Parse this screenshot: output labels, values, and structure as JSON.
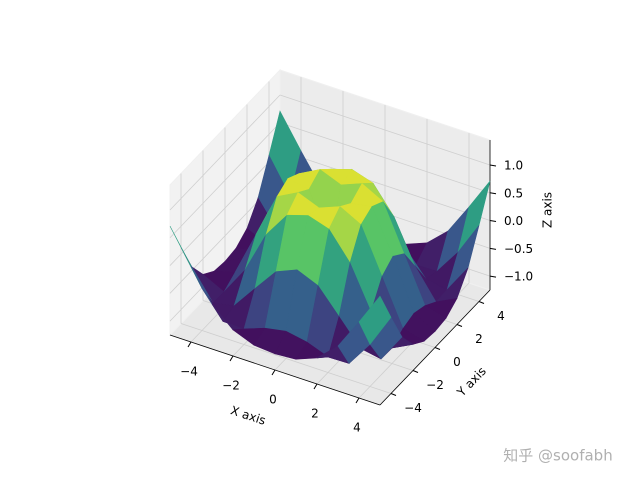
{
  "chart_data": {
    "type": "surface3d",
    "x": [
      -5,
      -4,
      -3,
      -2,
      -1,
      0,
      1,
      2,
      3,
      4,
      5
    ],
    "y": [
      -5,
      -4,
      -3,
      -2,
      -1,
      0,
      1,
      2,
      3,
      4,
      5
    ],
    "z": [
      [
        0.71,
        0.12,
        -0.44,
        -0.78,
        -0.93,
        -0.96,
        -0.93,
        -0.78,
        -0.44,
        0.12,
        0.71
      ],
      [
        0.12,
        -0.49,
        -0.96,
        -0.97,
        -0.83,
        -0.76,
        -0.83,
        -0.97,
        -0.96,
        -0.49,
        0.12
      ],
      [
        -0.44,
        -0.96,
        -0.89,
        -0.45,
        -0.02,
        0.14,
        -0.02,
        -0.45,
        -0.89,
        -0.96,
        -0.44
      ],
      [
        -0.78,
        -0.97,
        -0.45,
        0.31,
        0.79,
        0.91,
        0.79,
        0.31,
        -0.45,
        -0.97,
        -0.78
      ],
      [
        -0.93,
        -0.83,
        -0.02,
        0.79,
        0.99,
        0.84,
        0.99,
        0.79,
        -0.02,
        -0.83,
        -0.93
      ],
      [
        -0.96,
        -0.76,
        0.14,
        0.91,
        0.84,
        0,
        0.84,
        0.91,
        0.14,
        -0.76,
        -0.96
      ],
      [
        -0.93,
        -0.83,
        -0.02,
        0.79,
        0.99,
        0.84,
        0.99,
        0.79,
        -0.02,
        -0.83,
        -0.93
      ],
      [
        -0.78,
        -0.97,
        -0.45,
        0.31,
        0.79,
        0.91,
        0.79,
        0.31,
        -0.45,
        -0.97,
        -0.78
      ],
      [
        -0.44,
        -0.96,
        -0.89,
        -0.45,
        -0.02,
        0.14,
        -0.02,
        -0.45,
        -0.89,
        -0.96,
        -0.44
      ],
      [
        0.12,
        -0.49,
        -0.96,
        -0.97,
        -0.83,
        -0.76,
        -0.83,
        -0.97,
        -0.96,
        -0.49,
        0.12
      ],
      [
        0.71,
        0.12,
        -0.44,
        -0.78,
        -0.93,
        -0.96,
        -0.93,
        -0.78,
        -0.44,
        0.12,
        0.71
      ]
    ],
    "colormap": "viridis",
    "xlabel": "X axis",
    "ylabel": "Y axis",
    "zlabel": "Z axis",
    "xlim": [
      -5,
      5
    ],
    "ylim": [
      -5,
      5
    ],
    "zlim": [
      -1.25,
      1.45
    ],
    "xticks": [
      {
        "value": -4,
        "label": "−4"
      },
      {
        "value": -2,
        "label": "−2"
      },
      0,
      2,
      4
    ],
    "yticks": [
      {
        "value": -4,
        "label": "−4"
      },
      {
        "value": -2,
        "label": "−2"
      },
      0,
      2,
      4
    ],
    "zticks": [
      {
        "value": -1,
        "label": "−1.0"
      },
      {
        "value": -0.5,
        "label": "−0.5"
      },
      {
        "value": 0,
        "label": "0.0"
      },
      {
        "value": 0.5,
        "label": "0.5"
      },
      {
        "value": 1,
        "label": "1.0"
      }
    ],
    "grid": true
  },
  "watermark": "知乎 @soofabh"
}
